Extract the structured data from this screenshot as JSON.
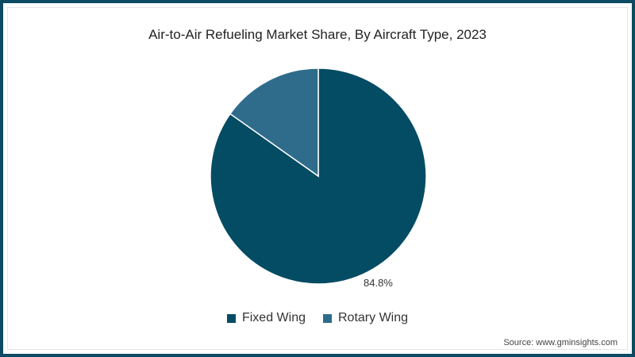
{
  "chart_data": {
    "type": "pie",
    "title": "Air-to-Air Refueling Market Share, By Aircraft Type, 2023",
    "categories": [
      "Fixed Wing",
      "Rotary Wing"
    ],
    "values": [
      84.8,
      15.2
    ],
    "colors": [
      "#044c63",
      "#2f6c8c"
    ],
    "data_labels": [
      "84.8%",
      ""
    ],
    "legend_position": "bottom",
    "source": "Source: www.gminsights.com"
  },
  "legend": [
    {
      "label": "Fixed Wing",
      "color": "#044c63"
    },
    {
      "label": "Rotary Wing",
      "color": "#2f6c8c"
    }
  ],
  "labels": {
    "fixed_pct": "84.8%"
  }
}
